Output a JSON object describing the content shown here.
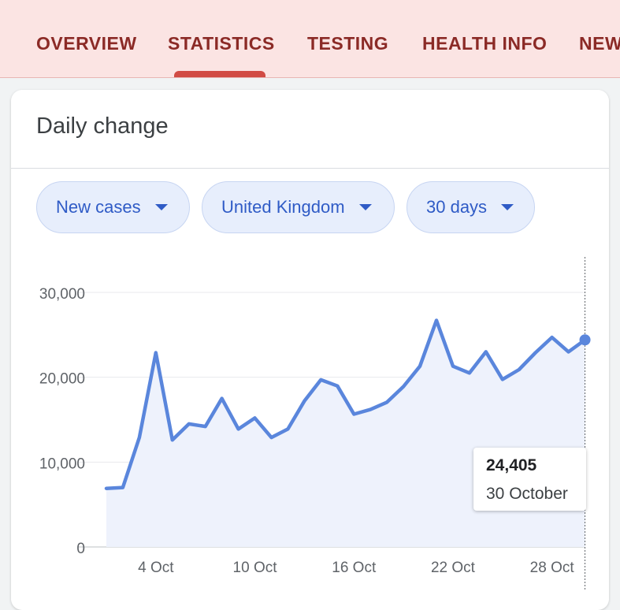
{
  "nav": {
    "tabs": [
      {
        "label": "OVERVIEW"
      },
      {
        "label": "STATISTICS"
      },
      {
        "label": "TESTING"
      },
      {
        "label": "HEALTH INFO"
      },
      {
        "label": "NEW"
      }
    ],
    "active_tab": "STATISTICS"
  },
  "card": {
    "title": "Daily change",
    "filters": {
      "metric": "New cases",
      "region": "United Kingdom",
      "range": "30 days"
    }
  },
  "tooltip": {
    "value": "24,405",
    "date": "30 October"
  },
  "colors": {
    "line": "#5a86dc",
    "area": "#eef2fc",
    "chip_text": "#2f5bc6",
    "tab_text": "#8b2a26",
    "tab_indicator": "#d14b44",
    "header_bg": "#fbe4e3"
  },
  "chart_data": {
    "type": "area",
    "ylim": [
      0,
      30000
    ],
    "y_ticks": [
      0,
      10000,
      20000,
      30000
    ],
    "y_tick_labels": [
      "0",
      "10,000",
      "20,000",
      "30,000"
    ],
    "x_tick_labels": [
      "4 Oct",
      "10 Oct",
      "16 Oct",
      "22 Oct",
      "28 Oct"
    ],
    "x_tick_days": [
      4,
      10,
      16,
      22,
      28
    ],
    "grid": true,
    "series": [
      {
        "x": [
          1,
          2,
          3,
          4,
          5,
          6,
          7,
          8,
          9,
          10,
          11,
          12,
          13,
          14,
          15,
          16,
          17,
          18,
          19,
          20,
          21,
          22,
          23,
          24,
          25,
          26,
          27,
          28,
          29,
          30
        ],
        "values": [
          6900,
          7000,
          12900,
          22900,
          12600,
          14500,
          14200,
          17500,
          13900,
          15200,
          12900,
          13900,
          17200,
          19700,
          18980,
          15650,
          16200,
          17050,
          18900,
          21300,
          26700,
          21300,
          20500,
          23000,
          19750,
          20900,
          22900,
          24700,
          23000,
          24405
        ]
      }
    ],
    "highlight": {
      "x": 30,
      "value": 24405
    }
  }
}
